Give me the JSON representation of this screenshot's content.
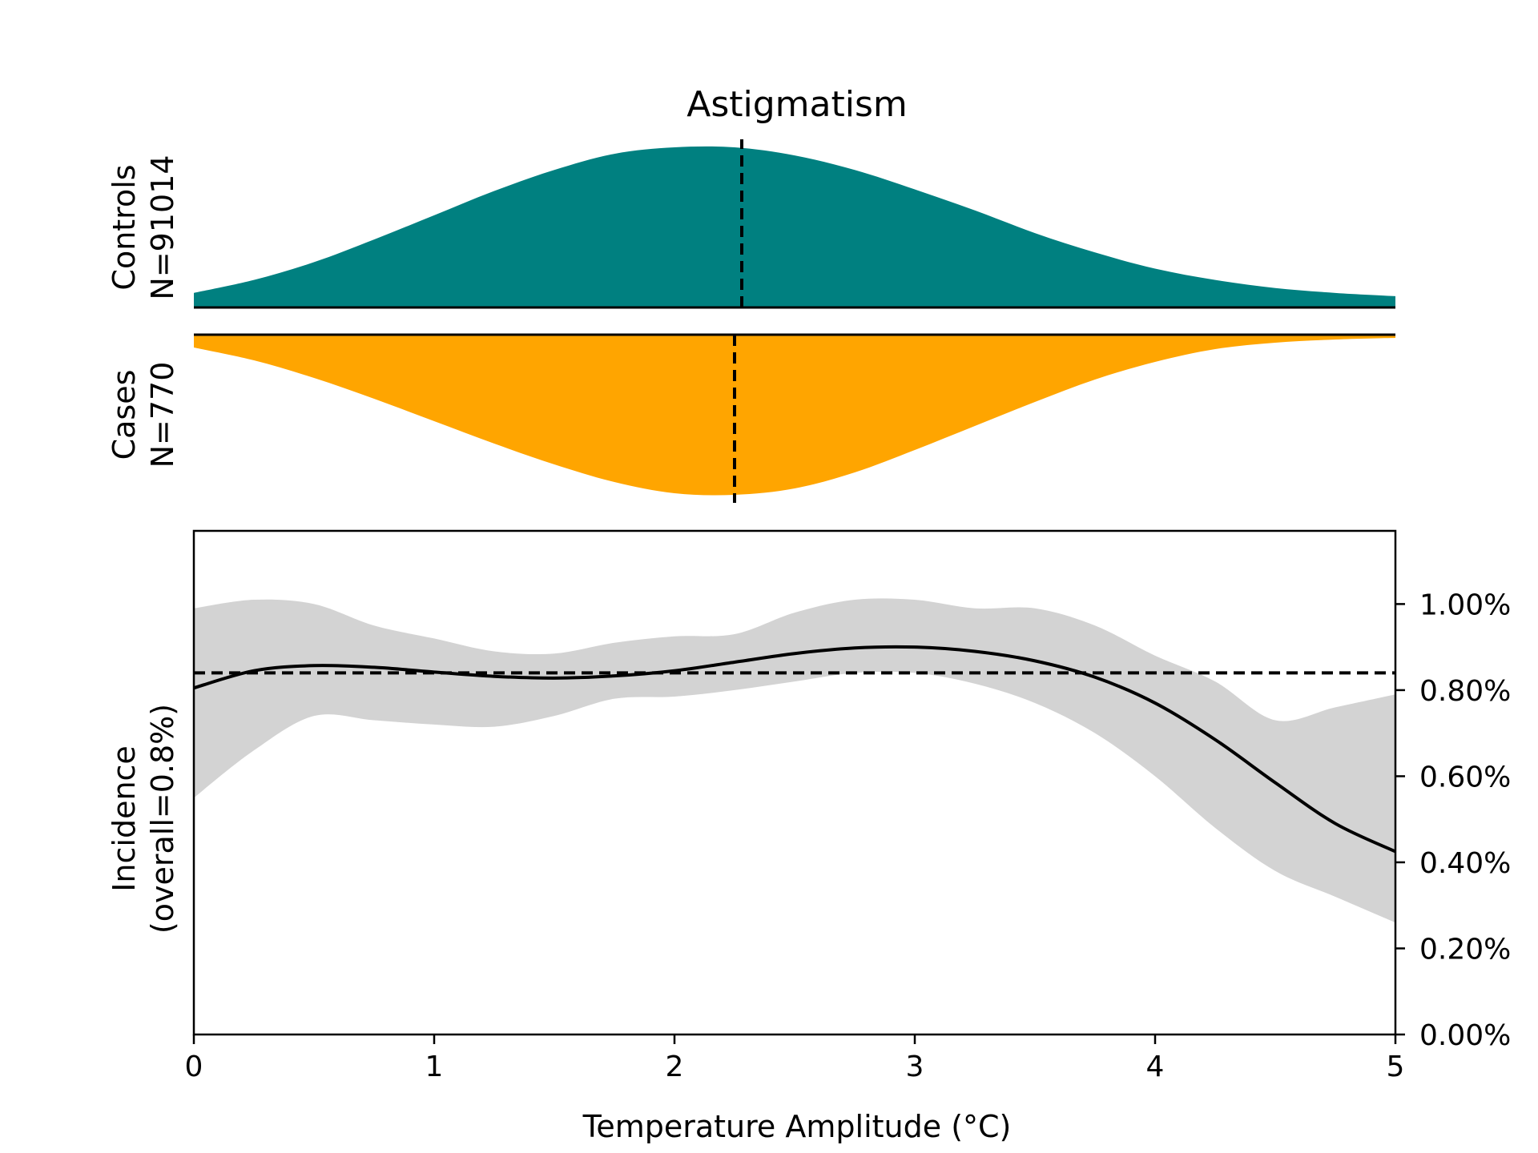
{
  "chart_data": {
    "title": "Astigmatism",
    "x": {
      "label": "Temperature Amplitude (°C)",
      "range": [
        0,
        5
      ],
      "ticks": [
        0,
        1,
        2,
        3,
        4,
        5
      ],
      "tick_labels": [
        "0",
        "1",
        "2",
        "3",
        "4",
        "5"
      ]
    },
    "density_panels": [
      {
        "type": "area",
        "name_line1": "Controls",
        "name_line2": "N=91014",
        "color": "#008080",
        "direction": "up",
        "median": 2.28,
        "x": [
          0,
          0.25,
          0.5,
          0.75,
          1,
          1.25,
          1.5,
          1.75,
          2,
          2.25,
          2.5,
          2.75,
          3,
          3.25,
          3.5,
          3.75,
          4,
          4.25,
          4.5,
          4.75,
          5
        ],
        "density": [
          0.09,
          0.17,
          0.28,
          0.42,
          0.57,
          0.72,
          0.85,
          0.95,
          0.99,
          0.99,
          0.94,
          0.85,
          0.73,
          0.6,
          0.46,
          0.34,
          0.24,
          0.17,
          0.12,
          0.09,
          0.07
        ]
      },
      {
        "type": "area",
        "name_line1": "Cases",
        "name_line2": "N=770",
        "color": "#FFA500",
        "direction": "down",
        "median": 2.25,
        "x": [
          0,
          0.25,
          0.5,
          0.75,
          1,
          1.25,
          1.5,
          1.75,
          2,
          2.25,
          2.5,
          2.75,
          3,
          3.25,
          3.5,
          3.75,
          4,
          4.25,
          4.5,
          4.75,
          5
        ],
        "density": [
          0.08,
          0.16,
          0.27,
          0.4,
          0.54,
          0.68,
          0.81,
          0.92,
          0.99,
          1.0,
          0.96,
          0.86,
          0.72,
          0.57,
          0.42,
          0.28,
          0.17,
          0.09,
          0.05,
          0.03,
          0.02
        ]
      }
    ],
    "incidence": {
      "type": "line",
      "ylabel_line1": "Incidence",
      "ylabel_line2": "(overall=0.8%)",
      "y_range": [
        0,
        1.17
      ],
      "y_ticks": [
        0,
        0.2,
        0.4,
        0.6,
        0.8,
        1.0
      ],
      "y_tick_labels": [
        "0.00%",
        "0.20%",
        "0.40%",
        "0.60%",
        "0.80%",
        "1.00%"
      ],
      "overall": 0.84,
      "line_color": "#000000",
      "band_color": "#D3D3D3",
      "x": [
        0,
        0.25,
        0.5,
        0.75,
        1,
        1.25,
        1.5,
        1.75,
        2,
        2.25,
        2.5,
        2.75,
        3,
        3.25,
        3.5,
        3.75,
        4,
        4.25,
        4.5,
        4.75,
        5
      ],
      "y": [
        0.805,
        0.845,
        0.857,
        0.853,
        0.842,
        0.832,
        0.828,
        0.833,
        0.845,
        0.865,
        0.885,
        0.898,
        0.9,
        0.89,
        0.868,
        0.83,
        0.77,
        0.685,
        0.585,
        0.49,
        0.425
      ],
      "lower": [
        0.55,
        0.66,
        0.74,
        0.73,
        0.72,
        0.715,
        0.74,
        0.78,
        0.785,
        0.8,
        0.82,
        0.84,
        0.84,
        0.815,
        0.77,
        0.7,
        0.6,
        0.48,
        0.38,
        0.32,
        0.26
      ],
      "upper": [
        0.99,
        1.01,
        1.0,
        0.95,
        0.92,
        0.89,
        0.885,
        0.91,
        0.925,
        0.93,
        0.98,
        1.01,
        1.01,
        0.99,
        0.99,
        0.95,
        0.88,
        0.82,
        0.73,
        0.76,
        0.79
      ]
    }
  }
}
